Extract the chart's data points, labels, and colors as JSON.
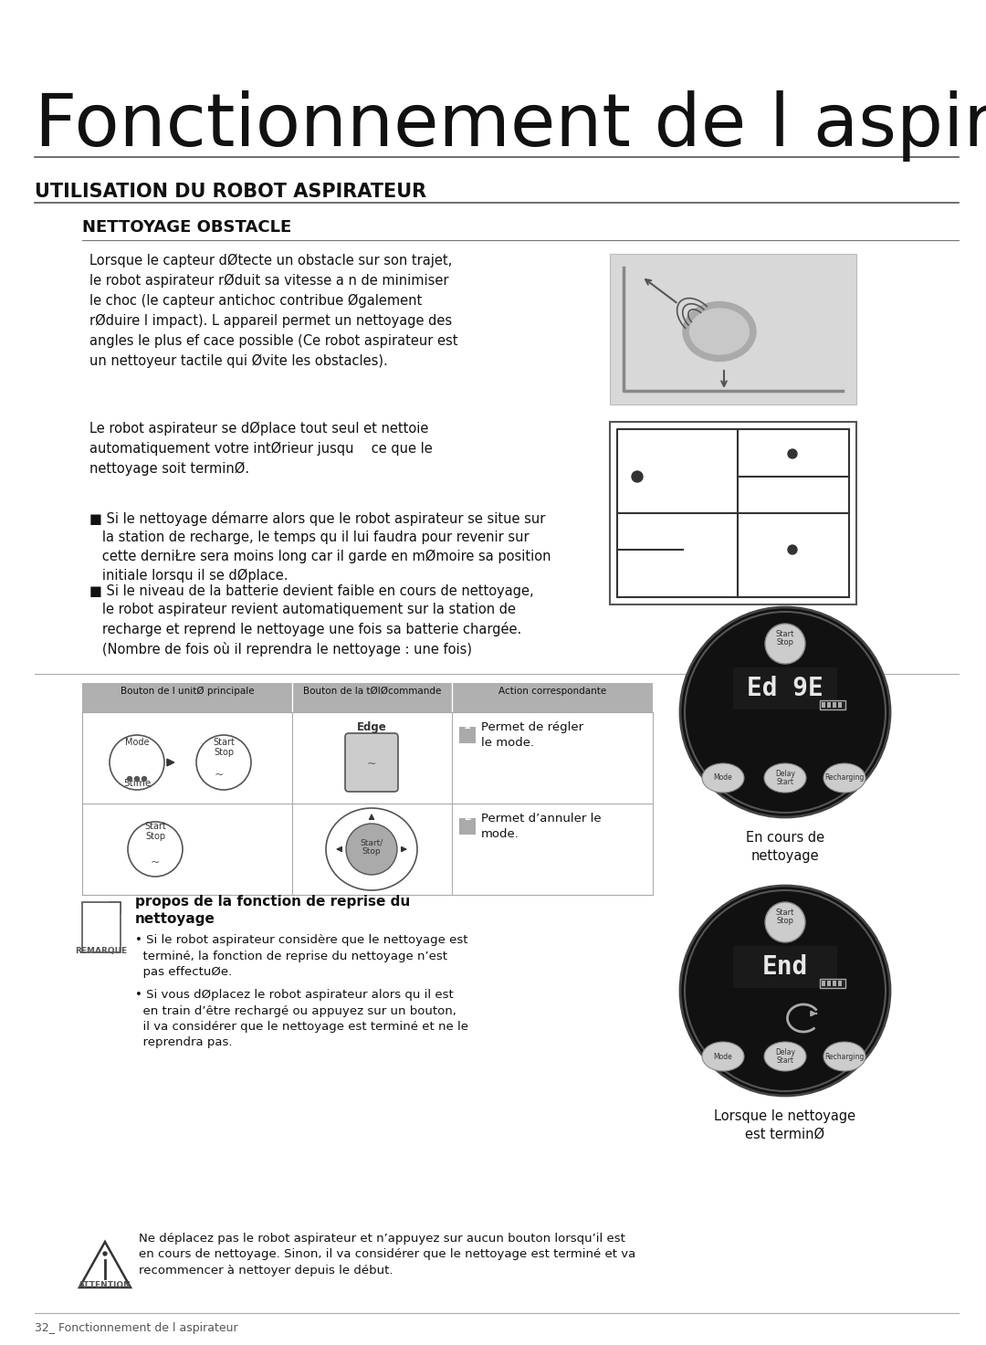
{
  "bg_color": "#ffffff",
  "title": "Fonctionnement de l aspirateu",
  "section_title": "UTILISATION DU ROBOT ASPIRATEUR",
  "subsection_title": "NETTOYAGE OBSTACLE",
  "para1": "Lorsque le capteur dØtecte un obstacle sur son trajet,\nle robot aspirateur rØduit sa vitesse a n de minimiser\nle choc (le capteur antichoc contribue Øgalement\nrØduire l impact). L appareil permet un nettoyage des\nangles le plus ef cace possible (Ce robot aspirateur est\nun nettoyeur tactile qui Øvite les obstacles).",
  "para2": "Le robot aspirateur se dØplace tout seul et nettoie\nautomatiquement votre intØrieur jusqu  ce que le\nnettoyage soit terminØ.",
  "bullet1": "■ Si le nettoyage démarre alors que le robot aspirateur se situe sur\n   la station de recharge, le temps qu il lui faudra pour revenir sur\n   cette derniŁre sera moins long car il garde en mØmoire sa position\n   initiale lorsqu il se dØplace.",
  "bullet2": "■ Si le niveau de la batterie devient faible en cours de nettoyage,\n   le robot aspirateur revient automatiquement sur la station de\n   recharge et reprend le nettoyage une fois sa batterie chargée.\n   (Nombre de fois où il reprendra le nettoyage : une fois)",
  "table_header": [
    "Bouton de l unitØ principale",
    "Bouton de la tØlØcommande",
    "Action correspondante"
  ],
  "table_row1_col3_num": "1",
  "table_row1_col3_txt": "Permet de régler\nle mode.",
  "table_row2_col3_num": "2",
  "table_row2_col3_txt": "Permet d’annuler le\nmode.",
  "table_row1_col2": "Edge",
  "remarque_title_bold": "propos de la fonction de reprise du",
  "remarque_title_bold2": "nettoyage",
  "remarque_bullet1": "• Si le robot aspirateur considère que le nettoyage est\n  terminé, la fonction de reprise du nettoyage n’est\n  pas effectuØe.",
  "remarque_bullet2": "• Si vous dØplacez le robot aspirateur alors qu il est\n  en train d’être rechargé ou appuyez sur un bouton,\n  il va considérer que le nettoyage est terminé et ne le\n  reprendra pas.",
  "attention_text": "Ne déplacez pas le robot aspirateur et n’appuyez sur aucun bouton lorsqu’il est\nen cours de nettoyage. Sinon, il va considérer que le nettoyage est terminé et va\nrecommencer à nettoyer depuis le début.",
  "footer": "32_ Fonctionnement de l aspirateur",
  "en_cours_label": "En cours de\nnettoyage",
  "lorsque_label": "Lorsque le nettoyage\nest terminØ",
  "display_text1": "Ed 9E",
  "display_text2": "End",
  "robot_bg": "#111111",
  "robot_btn_bg": "#cccccc",
  "robot_btn_text": "#333333",
  "display_text_color": "#ffffff",
  "battery_color": "#cccccc"
}
